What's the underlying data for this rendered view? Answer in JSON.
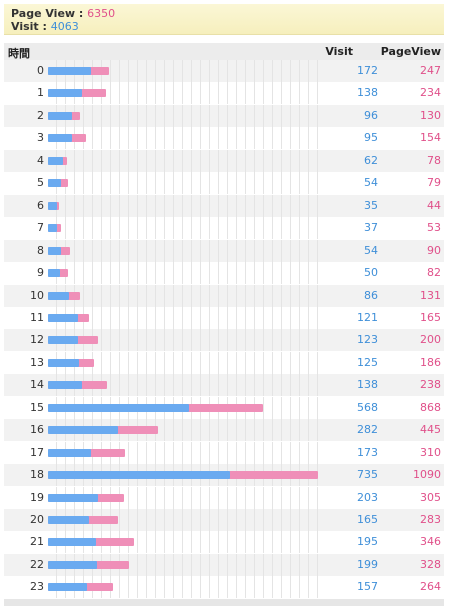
{
  "summary": {
    "pv_label": "Page View : ",
    "pv_value": "6350",
    "visit_label": "Visit : ",
    "visit_value": "4063"
  },
  "header": {
    "hour": "時間",
    "visit": "Visit",
    "pageview": "PageView"
  },
  "colors": {
    "visit": "#6aaaf0",
    "pageview": "#ef8fb8"
  },
  "chart_data": {
    "type": "bar",
    "categories": [
      "0",
      "1",
      "2",
      "3",
      "4",
      "5",
      "6",
      "7",
      "8",
      "9",
      "10",
      "11",
      "12",
      "13",
      "14",
      "15",
      "16",
      "17",
      "18",
      "19",
      "20",
      "21",
      "22",
      "23"
    ],
    "series": [
      {
        "name": "Visit",
        "values": [
          172,
          138,
          96,
          95,
          62,
          54,
          35,
          37,
          54,
          50,
          86,
          121,
          123,
          125,
          138,
          568,
          282,
          173,
          735,
          203,
          165,
          195,
          199,
          157
        ]
      },
      {
        "name": "PageView",
        "values": [
          247,
          234,
          130,
          154,
          78,
          79,
          44,
          53,
          90,
          82,
          131,
          165,
          200,
          186,
          238,
          868,
          445,
          310,
          1090,
          305,
          283,
          346,
          328,
          264
        ]
      }
    ],
    "xlim": [
      0,
      1090
    ]
  }
}
